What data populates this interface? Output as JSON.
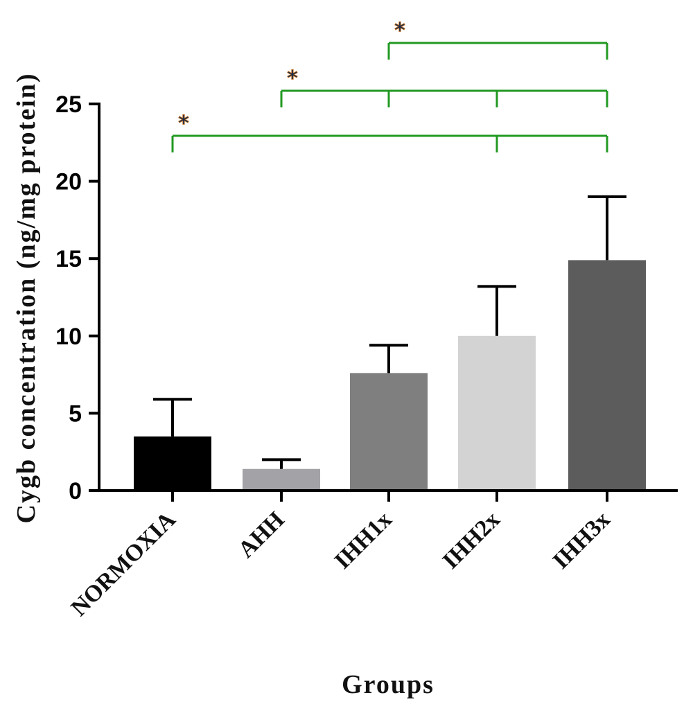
{
  "chart_data": {
    "type": "bar",
    "title": "",
    "xlabel": "Groups",
    "ylabel": "Cygb concentration (ng/mg protein)",
    "categories": [
      "NORMOXIA",
      "AHH",
      "IHH1x",
      "IHH2x",
      "IHH3x"
    ],
    "values": [
      3.5,
      1.4,
      7.6,
      10.0,
      14.9
    ],
    "errors": [
      2.4,
      0.6,
      1.8,
      3.2,
      4.1
    ],
    "bar_colors": [
      "#000000",
      "#a3a3a7",
      "#7f7f7f",
      "#d3d3d3",
      "#5c5c5c"
    ],
    "ylim": [
      0,
      25
    ],
    "yticks": [
      "0",
      "5",
      "10",
      "15",
      "20",
      "25"
    ],
    "grid": false,
    "significance": [
      {
        "label": "*",
        "from": "NORMOXIA",
        "to": [
          "IHH2x",
          "IHH3x"
        ]
      },
      {
        "label": "*",
        "from": "AHH",
        "to": [
          "IHH1x",
          "IHH2x",
          "IHH3x"
        ]
      },
      {
        "label": "*",
        "from": "IHH1x",
        "to": [
          "IHH3x"
        ]
      }
    ],
    "bracket_color": "#229922"
  }
}
